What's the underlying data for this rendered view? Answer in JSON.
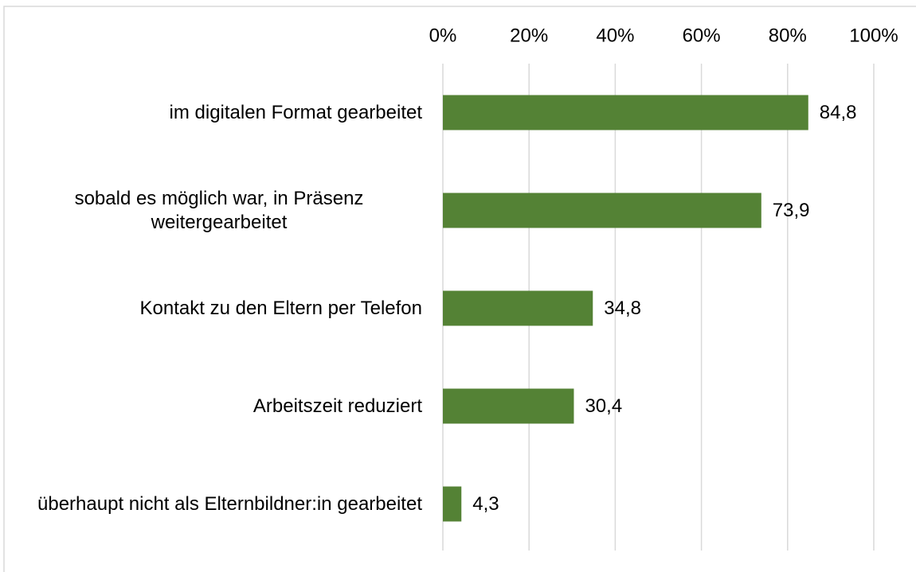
{
  "chart_data": {
    "type": "bar",
    "orientation": "horizontal",
    "categories": [
      "im digitalen Format gearbeitet",
      "sobald es möglich war, in Präsenz weitergearbeitet",
      "Kontakt zu den Eltern per Telefon",
      "Arbeitszeit reduziert",
      "überhaupt nicht als Elternbildner:in gearbeitet"
    ],
    "values": [
      84.8,
      73.9,
      34.8,
      30.4,
      4.3
    ],
    "value_labels": [
      "84,8",
      "73,9",
      "34,8",
      "30,4",
      "4,3"
    ],
    "color": "#548235",
    "xlim": [
      0,
      100
    ],
    "xticks": [
      {
        "value": 0,
        "label": "0%"
      },
      {
        "value": 20,
        "label": "20%"
      },
      {
        "value": 40,
        "label": "40%"
      },
      {
        "value": 60,
        "label": "60%"
      },
      {
        "value": 80,
        "label": "80%"
      },
      {
        "value": 100,
        "label": "100%"
      }
    ],
    "grid": true
  }
}
